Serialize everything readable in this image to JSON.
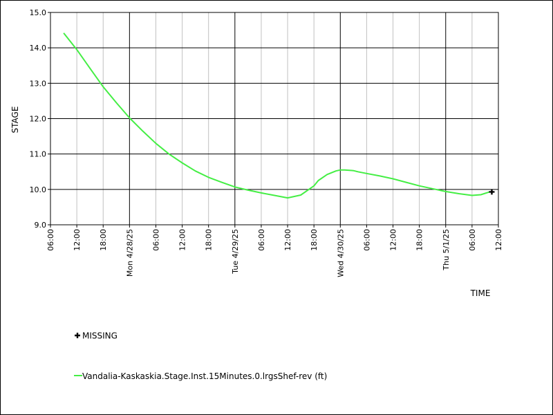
{
  "chart_data": {
    "type": "line",
    "ylabel": "STAGE",
    "xlabel": "TIME",
    "ylim": [
      9.0,
      15.0
    ],
    "y_ticks": [
      "9.0",
      "10.0",
      "11.0",
      "12.0",
      "13.0",
      "14.0",
      "15.0"
    ],
    "xlim_hours": [
      0,
      102
    ],
    "x_tick_labels": [
      "06:00",
      "12:00",
      "18:00",
      "Mon 4/28/25",
      "06:00",
      "12:00",
      "18:00",
      "Tue 4/29/25",
      "06:00",
      "12:00",
      "18:00",
      "Wed 4/30/25",
      "06:00",
      "12:00",
      "18:00",
      "Thu 5/1/25",
      "06:00",
      "12:00"
    ],
    "grid": true,
    "series": [
      {
        "name": "Vandalia-Kaskaskia.Stage.Inst.15Minutes.0.lrgsShef-rev (ft)",
        "color": "#44ee44",
        "x_hours": [
          3,
          6,
          9,
          12,
          15,
          18,
          21,
          24,
          27,
          30,
          33,
          36,
          39,
          42,
          45,
          48,
          51,
          54,
          57,
          60,
          61,
          63,
          65,
          66,
          67,
          69,
          70,
          72,
          75,
          78,
          81,
          84,
          87,
          90,
          93,
          96,
          98,
          100
        ],
        "values": [
          14.42,
          13.95,
          13.42,
          12.9,
          12.45,
          12.02,
          11.65,
          11.3,
          11.0,
          10.75,
          10.52,
          10.34,
          10.2,
          10.07,
          9.98,
          9.9,
          9.83,
          9.76,
          9.84,
          10.1,
          10.25,
          10.42,
          10.52,
          10.55,
          10.55,
          10.53,
          10.5,
          10.45,
          10.38,
          10.3,
          10.2,
          10.1,
          10.02,
          9.94,
          9.88,
          9.83,
          9.85,
          9.93
        ]
      }
    ],
    "missing_points": [
      {
        "x_hours": 100.5,
        "value": 9.93
      }
    ]
  },
  "legend": {
    "missing_label": "MISSING",
    "series_label": "Vandalia-Kaskaskia.Stage.Inst.15Minutes.0.lrgsShef-rev (ft)"
  }
}
